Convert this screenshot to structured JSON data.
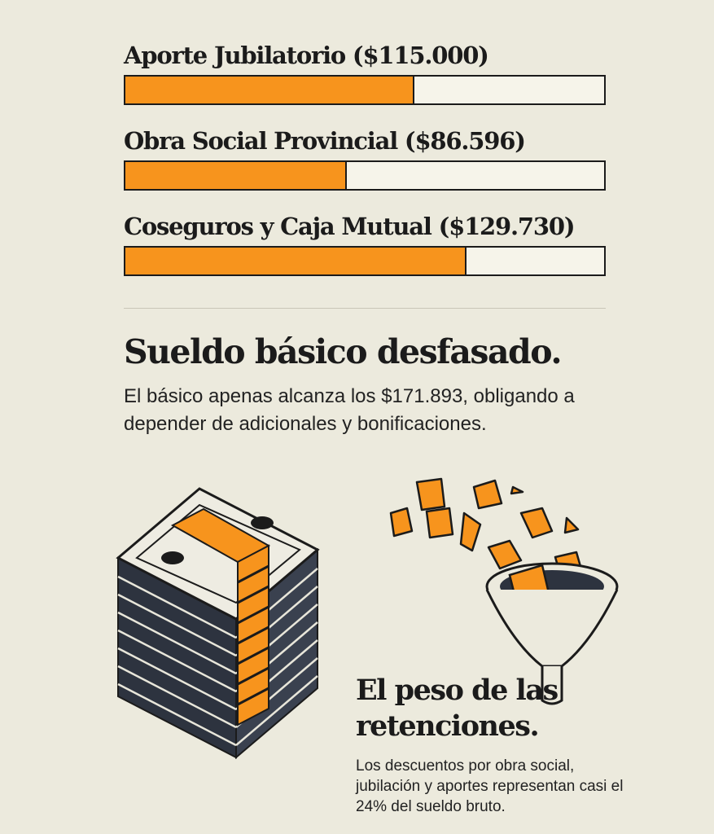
{
  "bars": [
    {
      "label": "Aporte Jubilatorio ($115.000)",
      "fill_fraction": 0.6
    },
    {
      "label": "Obra Social Provincial ($86.596)",
      "fill_fraction": 0.46
    },
    {
      "label": "Coseguros y Caja Mutual ($129.730)",
      "fill_fraction": 0.71
    }
  ],
  "colors": {
    "accent": "#f7941d",
    "ink": "#1b1b1b",
    "background": "#eceadd"
  },
  "section1": {
    "title": "Sueldo básico desfasado.",
    "body": "El básico apenas alcanza los $171.893, obligando a depender de adicionales y bonificaciones."
  },
  "section2": {
    "title": "El peso de las retenciones.",
    "body": "Los descuentos por obra social, jubilación y aportes representan casi el 24% del sueldo bruto."
  },
  "icons": {
    "money": "money-stack-icon",
    "funnel": "funnel-icon"
  }
}
